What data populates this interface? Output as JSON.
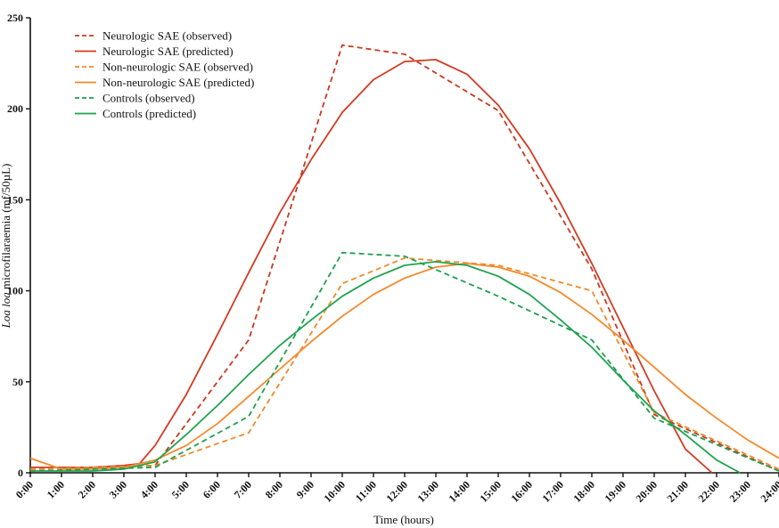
{
  "chart_data": {
    "type": "line",
    "xlabel": "Time (hours)",
    "ylabel_italic": "Loa loa",
    "ylabel_rest": " microfilaraemia (mf/50µL)",
    "x_categories": [
      "0:00",
      "1:00",
      "2:00",
      "3:00",
      "4:00",
      "5:00",
      "6:00",
      "7:00",
      "8:00",
      "9:00",
      "10:00",
      "11:00",
      "12:00",
      "13:00",
      "14:00",
      "15:00",
      "16:00",
      "17:00",
      "18:00",
      "19:00",
      "20:00",
      "21:00",
      "22:00",
      "23:00",
      "24:00"
    ],
    "xlim": [
      0,
      24
    ],
    "ylim": [
      0,
      250
    ],
    "y_ticks": [
      0,
      50,
      100,
      150,
      200,
      250
    ],
    "legend_position": "top-left",
    "series": [
      {
        "name": "Neurologic SAE (observed)",
        "color": "#c8391e",
        "dash": "dashed",
        "x": [
          0,
          4,
          7,
          10,
          12,
          15,
          18,
          20,
          24
        ],
        "y": [
          2,
          4,
          73,
          235,
          230,
          199,
          112,
          32,
          1
        ]
      },
      {
        "name": "Neurologic SAE (predicted)",
        "color": "#d23a22",
        "dash": "solid",
        "x": [
          0,
          1,
          2,
          3,
          3.5,
          4,
          5,
          6,
          7,
          8,
          9,
          10,
          11,
          12,
          13,
          14,
          15,
          16,
          17,
          18,
          19,
          20,
          21,
          21.85
        ],
        "y": [
          3,
          3,
          3,
          4,
          5,
          15,
          43,
          76,
          110,
          143,
          172,
          198,
          216,
          226,
          227,
          219,
          202,
          178,
          148,
          115,
          80,
          45,
          13,
          0
        ]
      },
      {
        "name": "Non-neurologic SAE (observed)",
        "color": "#f08a2a",
        "dash": "dashed",
        "x": [
          0,
          4,
          7,
          10,
          12,
          15,
          18,
          20,
          24
        ],
        "y": [
          2,
          4,
          22,
          104,
          118,
          114,
          100,
          33,
          2
        ]
      },
      {
        "name": "Non-neurologic SAE (predicted)",
        "color": "#f5892b",
        "dash": "solid",
        "x": [
          0,
          1,
          2,
          3,
          4,
          5,
          6,
          7,
          8,
          9,
          10,
          11,
          12,
          13,
          14,
          15,
          16,
          17,
          18,
          19,
          20,
          21,
          22,
          23,
          24
        ],
        "y": [
          8,
          2,
          2,
          3,
          7,
          15,
          27,
          42,
          57,
          72,
          86,
          98,
          107,
          113,
          115,
          113,
          108,
          99,
          87,
          73,
          58,
          43,
          30,
          18,
          8
        ]
      },
      {
        "name": "Controls (observed)",
        "color": "#1e9e4f",
        "dash": "dashed",
        "x": [
          0,
          4,
          7,
          10,
          12,
          15,
          18,
          20,
          24
        ],
        "y": [
          1,
          3,
          31,
          121,
          119,
          97,
          73,
          30,
          1
        ]
      },
      {
        "name": "Controls (predicted)",
        "color": "#1ea34f",
        "dash": "solid",
        "x": [
          0,
          1,
          2,
          3,
          4,
          5,
          6,
          7,
          8,
          9,
          10,
          11,
          12,
          13,
          14,
          15,
          16,
          17,
          18,
          19,
          20,
          21,
          22,
          22.75
        ],
        "y": [
          1,
          1,
          1,
          2,
          6,
          21,
          37,
          54,
          70,
          84,
          97,
          107,
          114,
          116,
          114,
          108,
          98,
          84,
          69,
          51,
          34,
          21,
          7,
          0
        ]
      }
    ]
  }
}
